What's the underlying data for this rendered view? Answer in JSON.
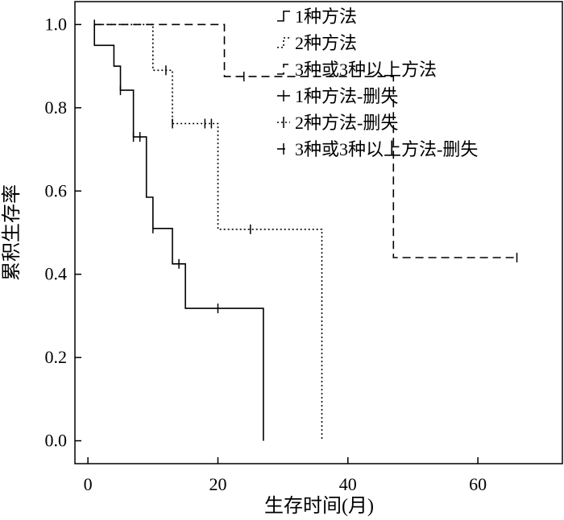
{
  "chart_data": {
    "type": "line",
    "subtype": "kaplan-meier",
    "title": "",
    "xlabel": "生存时间(月)",
    "ylabel": "累积生存率",
    "xlim": [
      -2,
      73
    ],
    "ylim": [
      -0.055,
      1.055
    ],
    "xticks": [
      0,
      20,
      40,
      60
    ],
    "xtick_labels": [
      "0",
      "20",
      "40",
      "60"
    ],
    "yticks": [
      0.0,
      0.2,
      0.4,
      0.6,
      0.8,
      1.0
    ],
    "ytick_labels": [
      "0.0",
      "0.2",
      "0.4",
      "0.6",
      "0.8",
      "1.0"
    ],
    "grid": false,
    "legend_position": "top-right",
    "legend": [
      "1种方法",
      "2种方法",
      "3种或3种以上方法",
      "1种方法-删失",
      "2种方法-删失",
      "3种或3种以上方法-删失"
    ],
    "series": [
      {
        "name": "1种方法",
        "style": "solid",
        "steps": [
          [
            1,
            1.0
          ],
          [
            1,
            0.95
          ],
          [
            4,
            0.95
          ],
          [
            4,
            0.9
          ],
          [
            5,
            0.9
          ],
          [
            5,
            0.842
          ],
          [
            7,
            0.842
          ],
          [
            7,
            0.73
          ],
          [
            9,
            0.73
          ],
          [
            9,
            0.585
          ],
          [
            10,
            0.585
          ],
          [
            10,
            0.51
          ],
          [
            13,
            0.51
          ],
          [
            13,
            0.425
          ],
          [
            15,
            0.425
          ],
          [
            15,
            0.318
          ],
          [
            27,
            0.318
          ],
          [
            27,
            0.0
          ]
        ],
        "censored": [
          [
            5,
            0.842
          ],
          [
            7,
            0.73
          ],
          [
            8,
            0.73
          ],
          [
            10,
            0.51
          ],
          [
            14,
            0.425
          ],
          [
            20,
            0.318
          ]
        ]
      },
      {
        "name": "2种方法",
        "style": "dotted",
        "steps": [
          [
            1,
            1.0
          ],
          [
            10,
            1.0
          ],
          [
            10,
            0.89
          ],
          [
            13,
            0.89
          ],
          [
            13,
            0.762
          ],
          [
            20,
            0.762
          ],
          [
            20,
            0.508
          ],
          [
            36,
            0.508
          ],
          [
            36,
            0.0
          ]
        ],
        "censored": [
          [
            12,
            0.89
          ],
          [
            13,
            0.762
          ],
          [
            18,
            0.762
          ],
          [
            19,
            0.762
          ],
          [
            25,
            0.508
          ]
        ]
      },
      {
        "name": "3种或3种以上方法",
        "style": "dashed",
        "steps": [
          [
            1,
            1.0
          ],
          [
            21,
            1.0
          ],
          [
            21,
            0.875
          ],
          [
            47,
            0.875
          ],
          [
            47,
            0.44
          ],
          [
            66,
            0.44
          ]
        ],
        "censored": [
          [
            1,
            1.0
          ],
          [
            24,
            0.875
          ],
          [
            66,
            0.44
          ]
        ]
      }
    ]
  }
}
